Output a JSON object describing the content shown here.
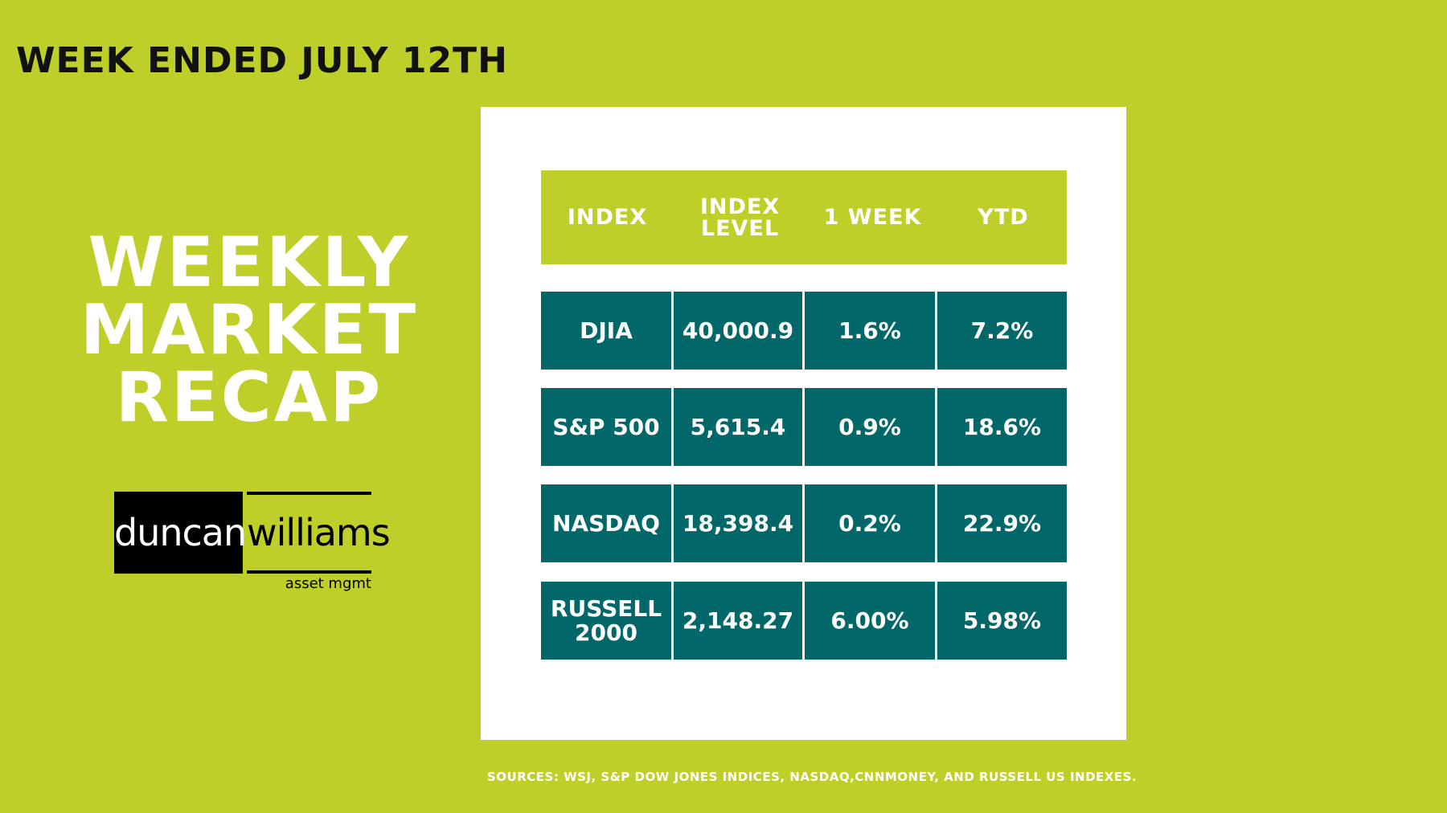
{
  "header": {
    "week_ended": "WEEK ENDED JULY 12TH"
  },
  "title": {
    "line1": "WEEKLY",
    "line2": "MARKET",
    "line3": "RECAP"
  },
  "logo": {
    "left_word": "duncan",
    "right_word": "williams",
    "sub": "asset mgmt"
  },
  "table": {
    "headers": [
      "INDEX",
      "INDEX\nLEVEL",
      "1 WEEK",
      "YTD"
    ],
    "rows": [
      {
        "index": "DJIA",
        "level": "40,000.9",
        "week": "1.6%",
        "ytd": "7.2%"
      },
      {
        "index": "S&P 500",
        "level": "5,615.4",
        "week": "0.9%",
        "ytd": "18.6%"
      },
      {
        "index": "NASDAQ",
        "level": "18,398.4",
        "week": "0.2%",
        "ytd": "22.9%"
      },
      {
        "index": "RUSSELL\n2000",
        "level": "2,148.27",
        "week": "6.00%",
        "ytd": "5.98%"
      }
    ]
  },
  "sources": "SOURCES: WSJ, S&P DOW JONES INDICES, NASDAQ,CNNMONEY,   AND  RUSSELL US INDEXES.",
  "colors": {
    "background": "#bfcf2a",
    "table_row": "#026769",
    "card": "#ffffff"
  }
}
